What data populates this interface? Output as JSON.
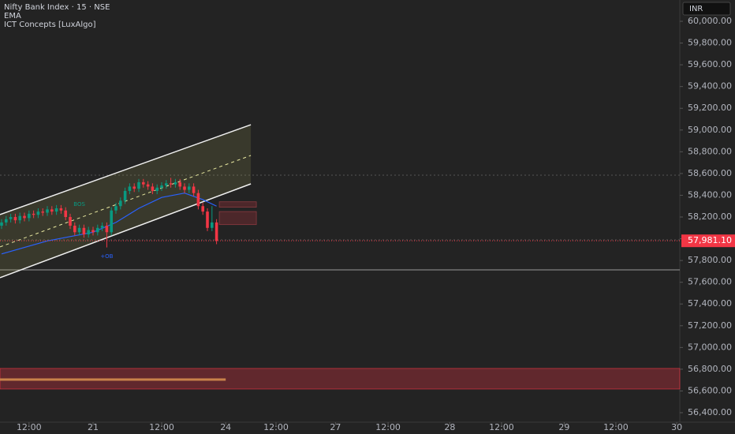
{
  "chart_data": {
    "type": "candlestick",
    "title": "Nifty Bank Index · 15 · NSE",
    "indicators": [
      "EMA",
      "ICT Concepts [LuxAlgo]"
    ],
    "currency": "INR",
    "up_color": "#089981",
    "down_color": "#f23645",
    "x": [
      0,
      1,
      2,
      3,
      4,
      5,
      6,
      7,
      8,
      9,
      10,
      11,
      12,
      13,
      14,
      15,
      16,
      17,
      18,
      19,
      20,
      21,
      22,
      23,
      24,
      25,
      26,
      27,
      28,
      29,
      30,
      31,
      32,
      33,
      34,
      35,
      36,
      37,
      38,
      39,
      40,
      41,
      42,
      43,
      44,
      45,
      46,
      47
    ],
    "open": [
      58120,
      58150,
      58180,
      58200,
      58170,
      58210,
      58190,
      58230,
      58220,
      58250,
      58240,
      58270,
      58250,
      58280,
      58260,
      58200,
      58120,
      58060,
      58100,
      58040,
      58080,
      58060,
      58100,
      58120,
      58060,
      58260,
      58300,
      58350,
      58440,
      58480,
      58460,
      58520,
      58500,
      58480,
      58440,
      58470,
      58490,
      58510,
      58500,
      58520,
      58480,
      58450,
      58480,
      58420,
      58300,
      58250,
      58100,
      58150
    ],
    "high": [
      58180,
      58210,
      58230,
      58230,
      58240,
      58240,
      58260,
      58260,
      58280,
      58280,
      58300,
      58300,
      58310,
      58310,
      58290,
      58230,
      58150,
      58130,
      58130,
      58110,
      58110,
      58130,
      58150,
      58150,
      58290,
      58330,
      58380,
      58470,
      58510,
      58510,
      58550,
      58550,
      58530,
      58510,
      58500,
      58520,
      58540,
      58560,
      58550,
      58550,
      58510,
      58510,
      58510,
      58450,
      58330,
      58280,
      58300,
      58180
    ],
    "low": [
      58090,
      58120,
      58150,
      58140,
      58140,
      58160,
      58160,
      58190,
      58190,
      58210,
      58210,
      58220,
      58220,
      58230,
      58170,
      58090,
      58030,
      58030,
      58010,
      58010,
      58030,
      58030,
      58070,
      57920,
      58030,
      58230,
      58270,
      58320,
      58410,
      58430,
      58430,
      58470,
      58450,
      58410,
      58410,
      58440,
      58460,
      58470,
      58470,
      58450,
      58420,
      58420,
      58390,
      58270,
      58220,
      58070,
      58070,
      57950
    ],
    "close": [
      58150,
      58180,
      58200,
      58170,
      58210,
      58190,
      58230,
      58220,
      58250,
      58240,
      58270,
      58250,
      58280,
      58260,
      58200,
      58120,
      58060,
      58100,
      58040,
      58080,
      58060,
      58100,
      58120,
      58060,
      58260,
      58300,
      58350,
      58440,
      58480,
      58460,
      58520,
      58500,
      58480,
      58440,
      58470,
      58490,
      58510,
      58500,
      58520,
      58480,
      58450,
      58480,
      58420,
      58300,
      58250,
      58100,
      58150,
      57981.1
    ],
    "ema": {
      "color": "#2962ff",
      "x": [
        0,
        10,
        20,
        25,
        30,
        35,
        40,
        44,
        47
      ],
      "values": [
        57860,
        57980,
        58060,
        58150,
        58280,
        58380,
        58420,
        58360,
        58300
      ]
    },
    "channel": {
      "x": [
        -0.345,
        54.5
      ],
      "upper": [
        58222,
        59049
      ],
      "middle": [
        57925,
        58766
      ],
      "lower": [
        57642,
        58505
      ]
    },
    "levels": [
      58585,
      57990,
      57714
    ],
    "zones": [
      {
        "x": [
          -0.345,
          148.276
        ],
        "y": [
          56618,
          56807
        ]
      }
    ],
    "band_line": {
      "x": [
        -0.345,
        49
      ],
      "value": 56705
    },
    "boxes": [
      {
        "x": [
          47.6,
          55.7
        ],
        "y": [
          58290,
          58340
        ]
      },
      {
        "x": [
          47.6,
          55.7
        ],
        "y": [
          58130,
          58250
        ]
      }
    ],
    "annotations": [
      {
        "text": "BOS",
        "x": 17,
        "y": 58316,
        "color": "#089981"
      },
      {
        "text": "+OB",
        "x": 23,
        "y": 57837,
        "color": "#2962ff"
      }
    ],
    "last_price": {
      "value": 57981.1,
      "label": "57,981.10"
    },
    "xlim": [
      -0.345,
      148.276
    ],
    "xticks": [
      {
        "value": 6,
        "label": "12:00"
      },
      {
        "value": 20,
        "label": "21"
      },
      {
        "value": 35,
        "label": "12:00"
      },
      {
        "value": 49,
        "label": "24"
      },
      {
        "value": 60,
        "label": "12:00"
      },
      {
        "value": 73,
        "label": "27"
      },
      {
        "value": 84.5,
        "label": "12:00"
      },
      {
        "value": 98,
        "label": "28"
      },
      {
        "value": 109.3,
        "label": "12:00"
      },
      {
        "value": 123,
        "label": "29"
      },
      {
        "value": 134.3,
        "label": "12:00"
      },
      {
        "value": 147.6,
        "label": "30"
      }
    ],
    "ylim": [
      56313,
      60196
    ],
    "yticks": [
      {
        "value": 56400,
        "label": "56,400.00"
      },
      {
        "value": 56600,
        "label": "56,600.00"
      },
      {
        "value": 56800,
        "label": "56,800.00"
      },
      {
        "value": 57000,
        "label": "57,000.00"
      },
      {
        "value": 57200,
        "label": "57,200.00"
      },
      {
        "value": 57400,
        "label": "57,400.00"
      },
      {
        "value": 57600,
        "label": "57,600.00"
      },
      {
        "value": 57800,
        "label": "57,800.00"
      },
      {
        "value": 58000,
        "label": "58,000.00"
      },
      {
        "value": 58200,
        "label": "58,200.00"
      },
      {
        "value": 58400,
        "label": "58,400.00"
      },
      {
        "value": 58600,
        "label": "58,600.00"
      },
      {
        "value": 58800,
        "label": "58,800.00"
      },
      {
        "value": 59000,
        "label": "59,000.00"
      },
      {
        "value": 59200,
        "label": "59,200.00"
      },
      {
        "value": 59400,
        "label": "59,400.00"
      },
      {
        "value": 59600,
        "label": "59,600.00"
      },
      {
        "value": 59800,
        "label": "59,800.00"
      },
      {
        "value": 60000,
        "label": "60,000.00"
      }
    ]
  }
}
